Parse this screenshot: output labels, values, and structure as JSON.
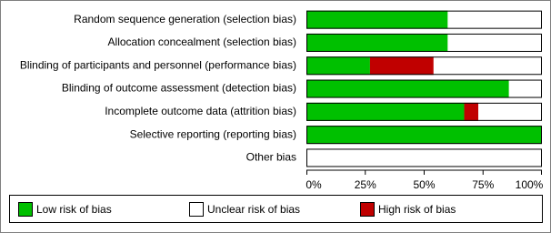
{
  "chart_data": {
    "type": "bar",
    "orientation": "horizontal",
    "stacked": true,
    "categories": [
      "Random sequence generation (selection bias)",
      "Allocation concealment (selection bias)",
      "Blinding of participants and personnel (performance bias)",
      "Blinding of outcome assessment (detection bias)",
      "Incomplete outcome data (attrition bias)",
      "Selective reporting (reporting bias)",
      "Other bias"
    ],
    "series": [
      {
        "name": "Low risk of bias",
        "color": "#00c000",
        "values": [
          60,
          60,
          27,
          86,
          67,
          100,
          0
        ]
      },
      {
        "name": "Unclear risk of bias",
        "color": "#ffffff",
        "values": [
          40,
          40,
          46,
          14,
          27,
          0,
          100
        ]
      },
      {
        "name": "High risk of bias",
        "color": "#c00000",
        "values": [
          0,
          0,
          27,
          0,
          6,
          0,
          0
        ]
      }
    ],
    "xlim": [
      0,
      100
    ],
    "xticks": [
      {
        "value": 0,
        "label": "0%"
      },
      {
        "value": 25,
        "label": "25%"
      },
      {
        "value": 50,
        "label": "50%"
      },
      {
        "value": 75,
        "label": "75%"
      },
      {
        "value": 100,
        "label": "100%"
      }
    ],
    "legend": "bottom"
  }
}
